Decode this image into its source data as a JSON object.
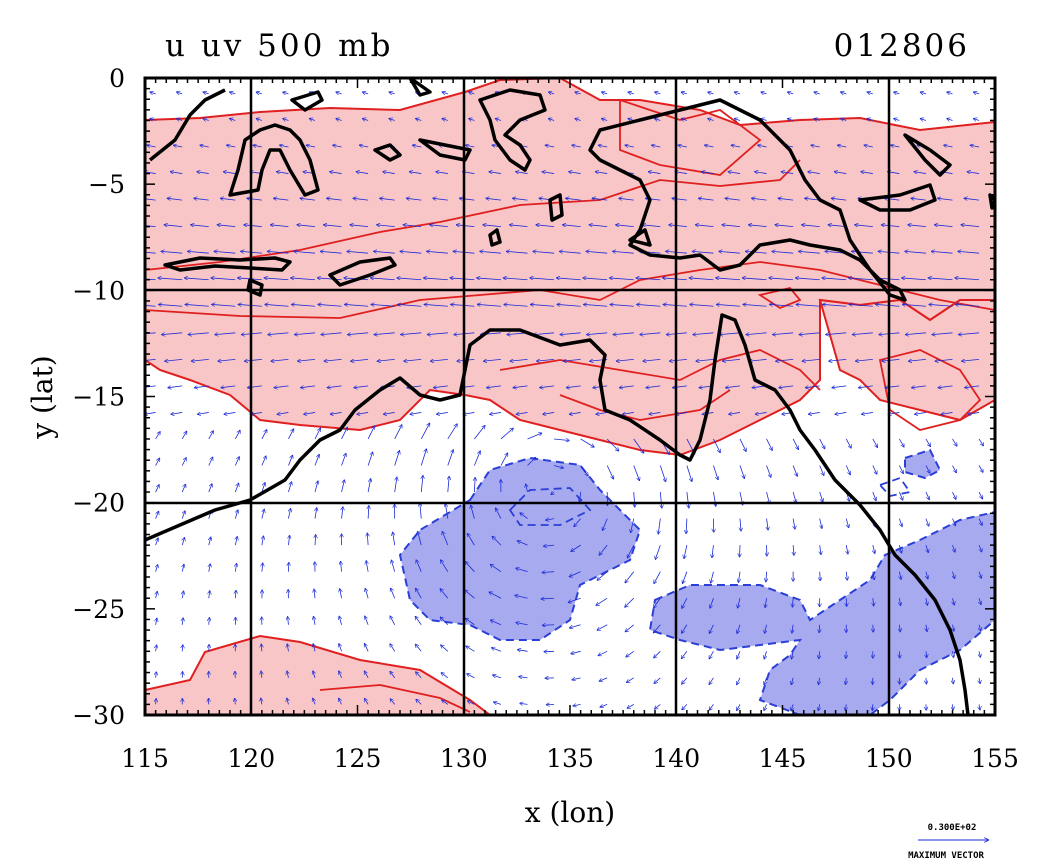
{
  "title_left": "u uv 500 mb",
  "title_right": "012806",
  "colors": {
    "positive_fill": "#f8c6c6",
    "positive_contour": "#e02020",
    "negative_fill": "#a8aaf0",
    "negative_contour": "#2a3fd6",
    "coast": "#000000",
    "vectors": "#1a2ad8",
    "grid": "#000000"
  },
  "chart_data": {
    "type": "map",
    "xlabel": "x (lon)",
    "ylabel": "y (lat)",
    "xlim": [
      115,
      155
    ],
    "ylim": [
      -30,
      0
    ],
    "xticks": [
      "115",
      "120",
      "125",
      "130",
      "135",
      "140",
      "145",
      "150",
      "155"
    ],
    "yticks": [
      "0",
      "−5",
      "−10",
      "−15",
      "−20",
      "−25",
      "−30"
    ],
    "grid_lines_lon": [
      120,
      130,
      140,
      150
    ],
    "grid_lines_lat": [
      -10,
      -20
    ],
    "fields": [
      "u (shaded, 500 mb)",
      "uv wind vectors (500 mb)"
    ],
    "legend": {
      "reference_value": "0.300E+02",
      "reference_label": "MAXIMUM VECTOR"
    }
  }
}
